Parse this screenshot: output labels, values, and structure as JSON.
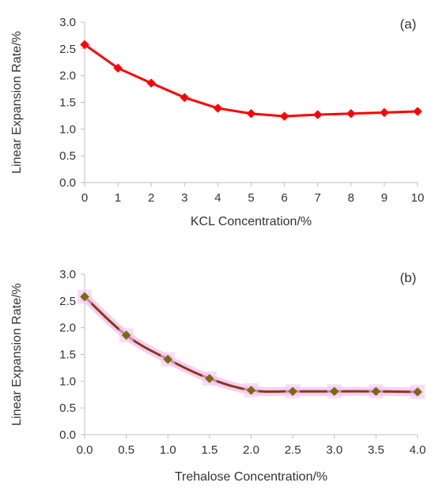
{
  "chart_data": [
    {
      "type": "line",
      "panel_label": "(a)",
      "xlabel": "KCL Concentration/%",
      "ylabel": "Linear Expansion Rate/%",
      "xlim": [
        0,
        10
      ],
      "ylim": [
        0,
        3
      ],
      "x_ticks": [
        "0",
        "1",
        "2",
        "3",
        "4",
        "5",
        "6",
        "7",
        "8",
        "9",
        "10"
      ],
      "y_ticks": [
        "0.0",
        "0.5",
        "1.0",
        "1.5",
        "2.0",
        "2.5",
        "3.0"
      ],
      "grid": false,
      "marker": "diamond",
      "color": "#ff0000",
      "series": [
        {
          "x": [
            0,
            1,
            2,
            3,
            4,
            5,
            6,
            7,
            8,
            9,
            10
          ],
          "values": [
            2.58,
            2.14,
            1.86,
            1.59,
            1.39,
            1.29,
            1.24,
            1.27,
            1.29,
            1.31,
            1.33
          ]
        }
      ]
    },
    {
      "type": "line",
      "panel_label": "(b)",
      "xlabel": "Trehalose Concentration/%",
      "ylabel": "Linear Expansion Rate/%",
      "xlim": [
        0,
        4
      ],
      "ylim": [
        0,
        3
      ],
      "x_ticks": [
        "0.0",
        "0.5",
        "1.0",
        "1.5",
        "2.0",
        "2.5",
        "3.0",
        "3.5",
        "4.0"
      ],
      "y_ticks": [
        "0.0",
        "0.5",
        "1.0",
        "1.5",
        "2.0",
        "2.5",
        "3.0"
      ],
      "grid": false,
      "marker": "diamond",
      "color": "#8b3a0f",
      "marker_color": "#7a6a10",
      "glow_color": "#f4c6f4",
      "series": [
        {
          "x": [
            0,
            0.5,
            1.0,
            1.5,
            2.0,
            2.5,
            3.0,
            3.5,
            4.0
          ],
          "values": [
            2.58,
            1.86,
            1.41,
            1.05,
            0.83,
            0.81,
            0.81,
            0.81,
            0.8
          ]
        }
      ]
    }
  ]
}
